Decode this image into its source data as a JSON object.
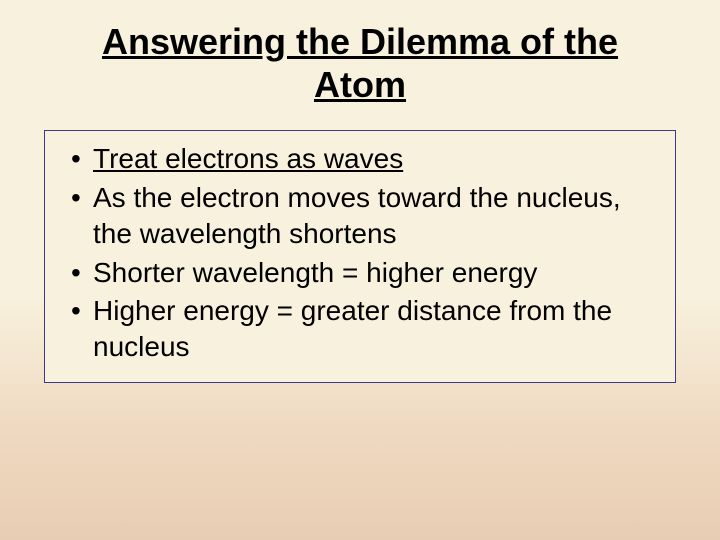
{
  "slide": {
    "title": "Answering the Dilemma of the Atom",
    "background_gradient_top": "#f8f1dd",
    "background_gradient_bottom": "#e8cdb5",
    "title_fontsize": 36,
    "title_underline": true,
    "content_box": {
      "border_color": "#3a3a8a",
      "background_color": "#f8f1dd",
      "bullets": [
        {
          "text": "Treat electrons as waves",
          "underlined": true
        },
        {
          "text": "As the electron moves toward the nucleus, the wavelength shortens",
          "underlined": false
        },
        {
          "text": "Shorter wavelength = higher energy",
          "underlined": false
        },
        {
          "text": "Higher energy = greater distance from the nucleus",
          "underlined": false
        }
      ],
      "bullet_fontsize": 28
    },
    "font_family": "Comic Sans MS"
  }
}
